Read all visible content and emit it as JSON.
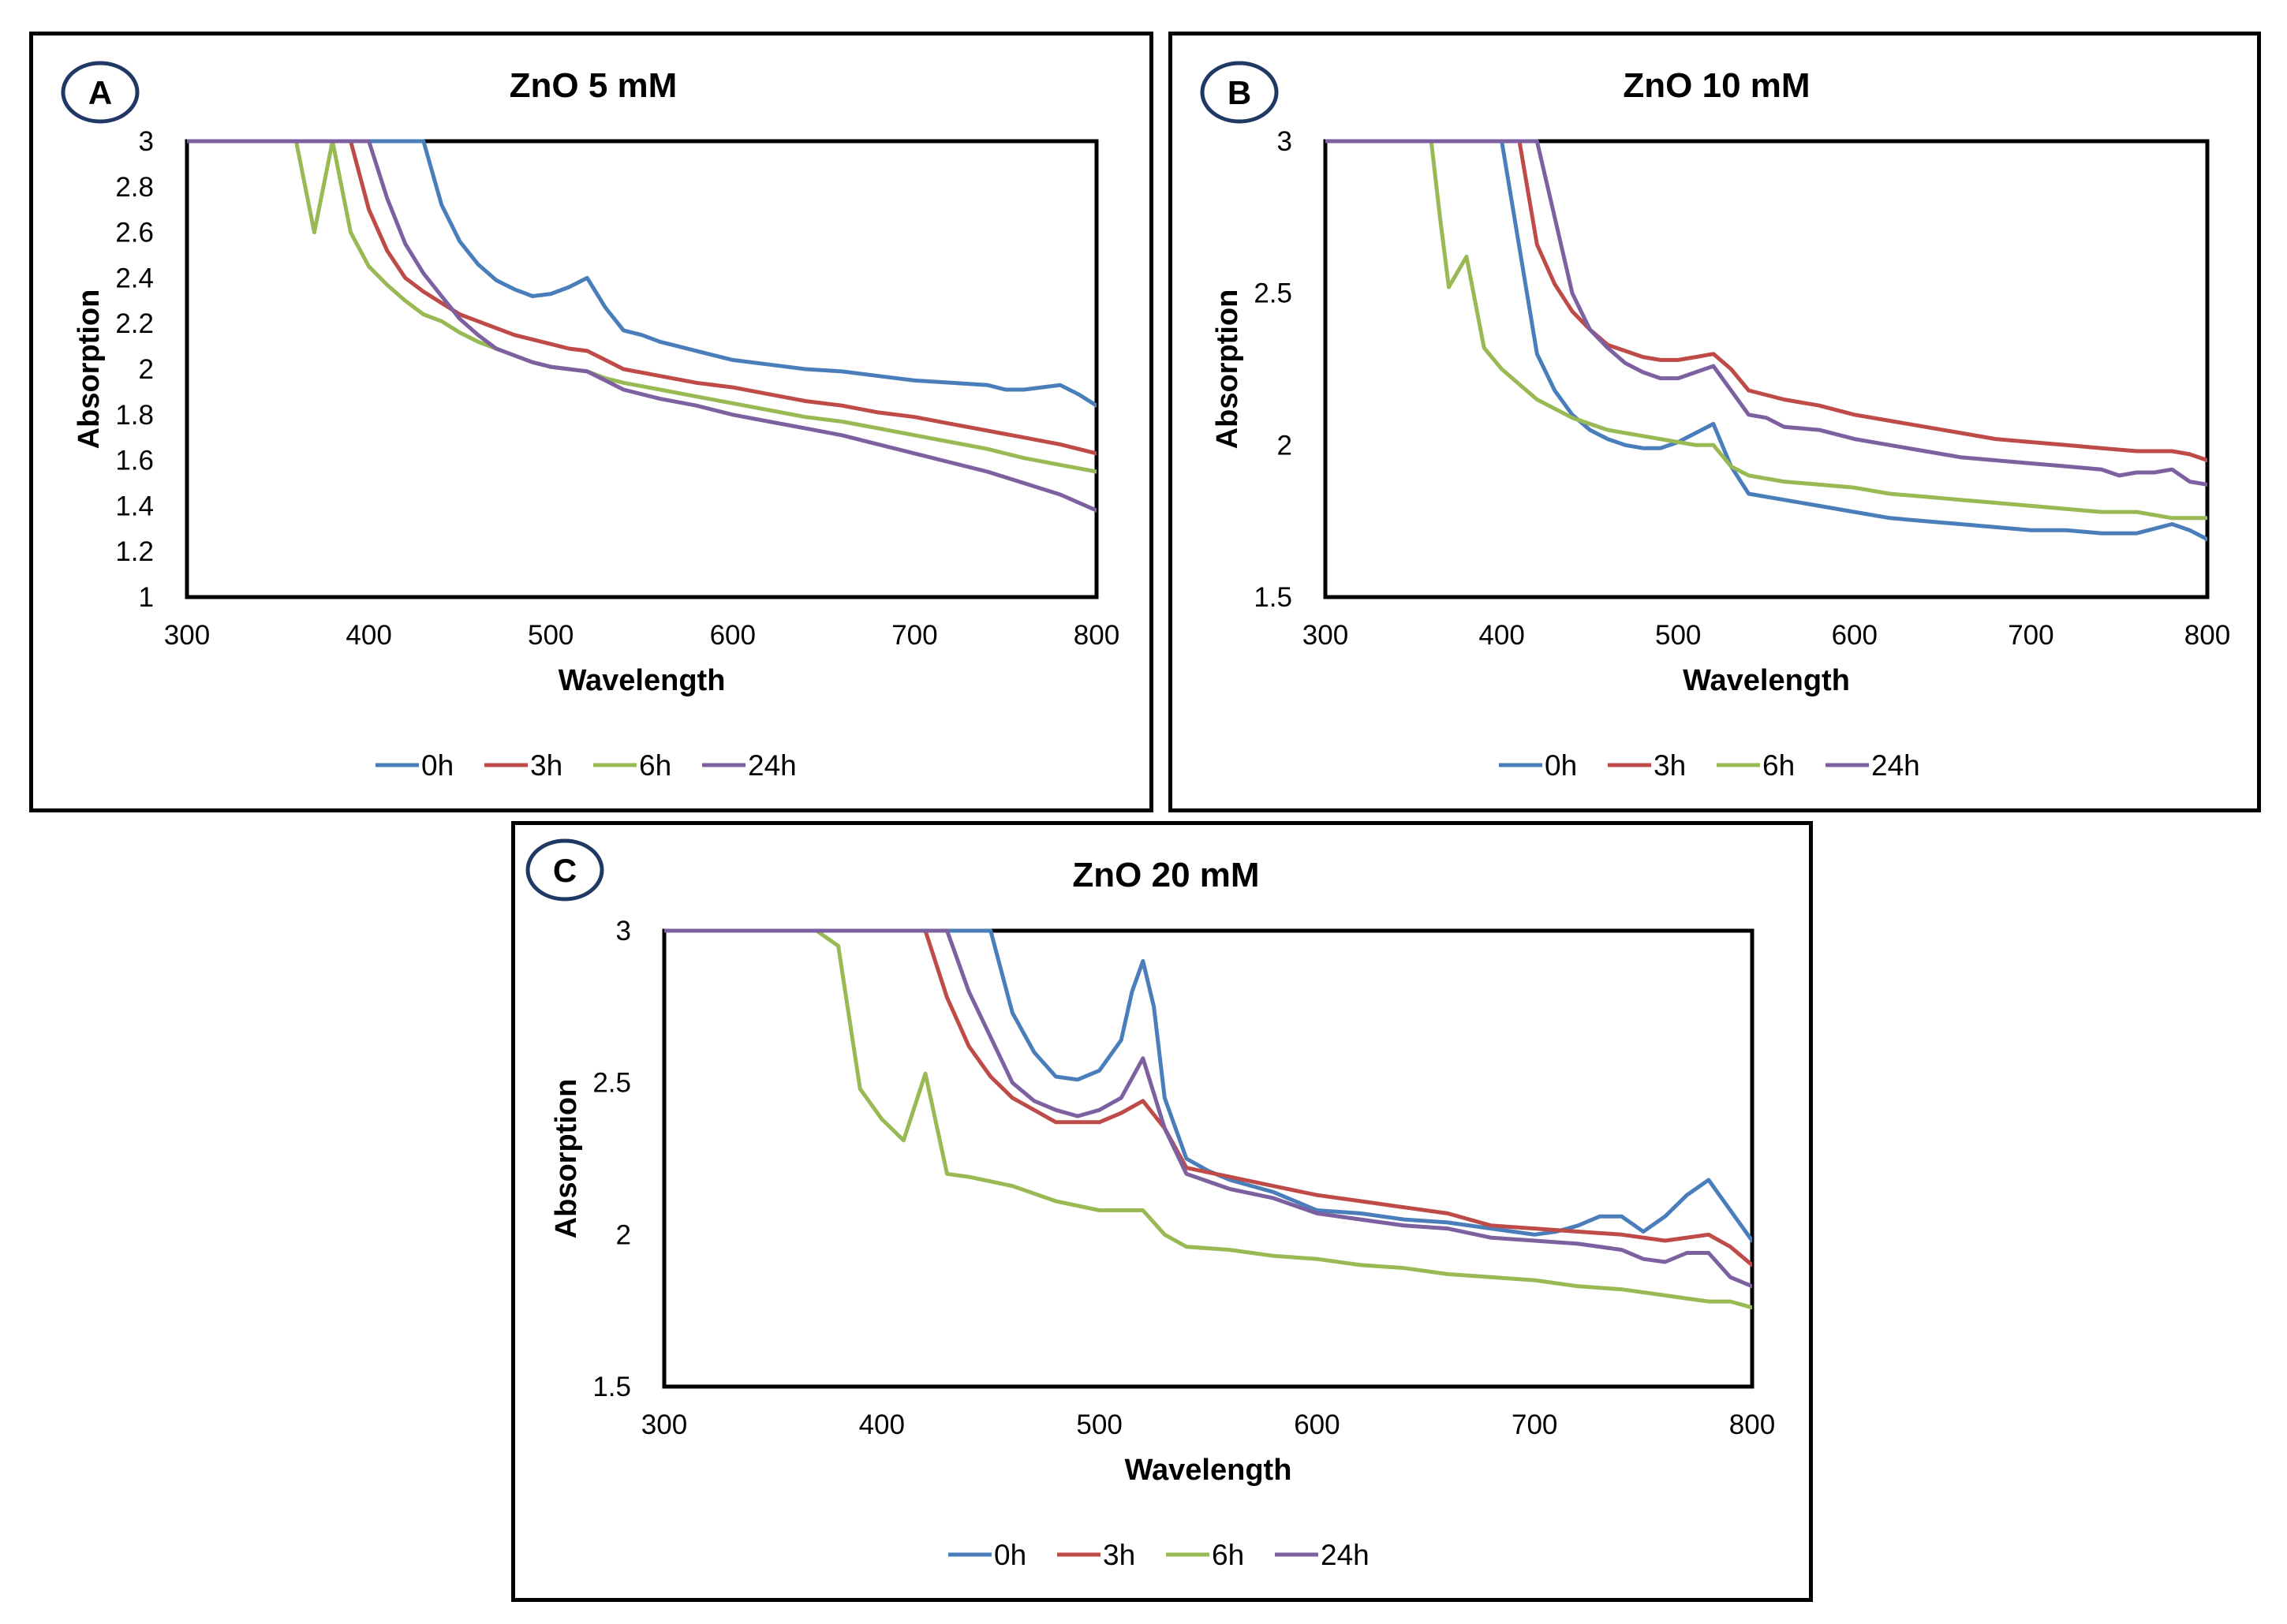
{
  "colors": {
    "0h": "#4a7ebb",
    "3h": "#be4b48",
    "6h": "#98b954",
    "24h": "#7d60a0",
    "badge_border": "#1f3864"
  },
  "chart_data": [
    {
      "type": "line",
      "panel_label": "A",
      "title": "ZnO 5 mM",
      "xlabel": "Wavelength",
      "ylabel": "Absorption",
      "xlim": [
        300,
        800
      ],
      "ylim": [
        1,
        3
      ],
      "xticks": [
        "300",
        "400",
        "500",
        "600",
        "700",
        "800"
      ],
      "yticks": [
        "1",
        "1.2",
        "1.4",
        "1.6",
        "1.8",
        "2",
        "2.2",
        "2.4",
        "2.6",
        "2.8",
        "3"
      ],
      "legend": [
        "0h",
        "3h",
        "6h",
        "24h"
      ],
      "series": [
        {
          "name": "0h",
          "x": [
            300,
            430,
            440,
            450,
            460,
            470,
            480,
            490,
            500,
            510,
            520,
            530,
            540,
            550,
            560,
            570,
            580,
            590,
            600,
            620,
            640,
            660,
            680,
            700,
            720,
            740,
            750,
            760,
            770,
            780,
            790,
            800
          ],
          "y": [
            3,
            3,
            2.72,
            2.56,
            2.46,
            2.39,
            2.35,
            2.32,
            2.33,
            2.36,
            2.4,
            2.27,
            2.17,
            2.15,
            2.12,
            2.1,
            2.08,
            2.06,
            2.04,
            2.02,
            2.0,
            1.99,
            1.97,
            1.95,
            1.94,
            1.93,
            1.91,
            1.91,
            1.92,
            1.93,
            1.89,
            1.84
          ]
        },
        {
          "name": "3h",
          "x": [
            300,
            390,
            400,
            410,
            420,
            430,
            440,
            450,
            460,
            470,
            480,
            490,
            500,
            510,
            520,
            530,
            540,
            560,
            580,
            600,
            620,
            640,
            660,
            680,
            700,
            720,
            740,
            760,
            780,
            800
          ],
          "y": [
            3,
            3,
            2.7,
            2.52,
            2.4,
            2.34,
            2.29,
            2.24,
            2.21,
            2.18,
            2.15,
            2.13,
            2.11,
            2.09,
            2.08,
            2.04,
            2.0,
            1.97,
            1.94,
            1.92,
            1.89,
            1.86,
            1.84,
            1.81,
            1.79,
            1.76,
            1.73,
            1.7,
            1.67,
            1.63
          ]
        },
        {
          "name": "6h",
          "x": [
            300,
            360,
            370,
            380,
            390,
            400,
            410,
            420,
            430,
            440,
            450,
            460,
            470,
            480,
            490,
            500,
            510,
            520,
            530,
            540,
            560,
            580,
            600,
            620,
            640,
            660,
            680,
            700,
            720,
            740,
            760,
            780,
            800
          ],
          "y": [
            3,
            3,
            2.6,
            3,
            2.6,
            2.45,
            2.37,
            2.3,
            2.24,
            2.21,
            2.16,
            2.12,
            2.09,
            2.06,
            2.03,
            2.01,
            2.0,
            1.99,
            1.96,
            1.94,
            1.91,
            1.88,
            1.85,
            1.82,
            1.79,
            1.77,
            1.74,
            1.71,
            1.68,
            1.65,
            1.61,
            1.58,
            1.55
          ]
        },
        {
          "name": "24h",
          "x": [
            300,
            400,
            410,
            420,
            430,
            440,
            450,
            460,
            470,
            480,
            490,
            500,
            510,
            520,
            530,
            540,
            560,
            580,
            600,
            620,
            640,
            660,
            680,
            700,
            720,
            740,
            760,
            780,
            800
          ],
          "y": [
            3,
            3,
            2.75,
            2.55,
            2.42,
            2.32,
            2.22,
            2.15,
            2.09,
            2.06,
            2.03,
            2.01,
            2.0,
            1.99,
            1.95,
            1.91,
            1.87,
            1.84,
            1.8,
            1.77,
            1.74,
            1.71,
            1.67,
            1.63,
            1.59,
            1.55,
            1.5,
            1.45,
            1.38
          ]
        }
      ]
    },
    {
      "type": "line",
      "panel_label": "B",
      "title": "ZnO 10 mM",
      "xlabel": "Wavelength",
      "ylabel": "Absorption",
      "xlim": [
        300,
        800
      ],
      "ylim": [
        1.5,
        3
      ],
      "xticks": [
        "300",
        "400",
        "500",
        "600",
        "700",
        "800"
      ],
      "yticks": [
        "1.5",
        "2",
        "2.5",
        "3"
      ],
      "legend": [
        "0h",
        "3h",
        "6h",
        "24h"
      ],
      "series": [
        {
          "name": "0h",
          "x": [
            300,
            400,
            410,
            420,
            430,
            440,
            450,
            460,
            470,
            480,
            490,
            500,
            510,
            520,
            530,
            540,
            560,
            580,
            600,
            620,
            640,
            660,
            680,
            700,
            720,
            740,
            760,
            780,
            790,
            800
          ],
          "y": [
            3,
            3,
            2.65,
            2.3,
            2.18,
            2.1,
            2.05,
            2.02,
            2.0,
            1.99,
            1.99,
            2.01,
            2.04,
            2.07,
            1.93,
            1.84,
            1.82,
            1.8,
            1.78,
            1.76,
            1.75,
            1.74,
            1.73,
            1.72,
            1.72,
            1.71,
            1.71,
            1.74,
            1.72,
            1.69
          ]
        },
        {
          "name": "3h",
          "x": [
            300,
            410,
            420,
            430,
            440,
            450,
            460,
            470,
            480,
            490,
            500,
            510,
            520,
            530,
            540,
            560,
            580,
            600,
            620,
            640,
            660,
            680,
            700,
            720,
            740,
            760,
            780,
            790,
            800
          ],
          "y": [
            3,
            3,
            2.66,
            2.53,
            2.44,
            2.38,
            2.33,
            2.31,
            2.29,
            2.28,
            2.28,
            2.29,
            2.3,
            2.25,
            2.18,
            2.15,
            2.13,
            2.1,
            2.08,
            2.06,
            2.04,
            2.02,
            2.01,
            2.0,
            1.99,
            1.98,
            1.98,
            1.97,
            1.95
          ]
        },
        {
          "name": "6h",
          "x": [
            300,
            360,
            365,
            370,
            380,
            390,
            400,
            410,
            420,
            440,
            460,
            480,
            500,
            510,
            520,
            530,
            540,
            560,
            580,
            600,
            620,
            640,
            660,
            680,
            700,
            720,
            740,
            760,
            780,
            800
          ],
          "y": [
            3,
            3,
            2.75,
            2.52,
            2.62,
            2.32,
            2.25,
            2.2,
            2.15,
            2.09,
            2.05,
            2.03,
            2.01,
            2.0,
            2.0,
            1.93,
            1.9,
            1.88,
            1.87,
            1.86,
            1.84,
            1.83,
            1.82,
            1.81,
            1.8,
            1.79,
            1.78,
            1.78,
            1.76,
            1.76
          ]
        },
        {
          "name": "24h",
          "x": [
            300,
            420,
            430,
            440,
            450,
            460,
            470,
            480,
            490,
            500,
            510,
            520,
            530,
            540,
            550,
            560,
            580,
            600,
            620,
            640,
            660,
            680,
            700,
            720,
            740,
            750,
            760,
            770,
            780,
            790,
            800
          ],
          "y": [
            3,
            3,
            2.75,
            2.5,
            2.38,
            2.32,
            2.27,
            2.24,
            2.22,
            2.22,
            2.24,
            2.26,
            2.18,
            2.1,
            2.09,
            2.06,
            2.05,
            2.02,
            2.0,
            1.98,
            1.96,
            1.95,
            1.94,
            1.93,
            1.92,
            1.9,
            1.91,
            1.91,
            1.92,
            1.88,
            1.87
          ]
        }
      ]
    },
    {
      "type": "line",
      "panel_label": "C",
      "title": "ZnO 20 mM",
      "xlabel": "Wavelength",
      "ylabel": "Absorption",
      "xlim": [
        300,
        800
      ],
      "ylim": [
        1.5,
        3
      ],
      "xticks": [
        "300",
        "400",
        "500",
        "600",
        "700",
        "800"
      ],
      "yticks": [
        "1.5",
        "2",
        "2.5",
        "3"
      ],
      "legend": [
        "0h",
        "3h",
        "6h",
        "24h"
      ],
      "series": [
        {
          "name": "0h",
          "x": [
            300,
            450,
            460,
            470,
            480,
            490,
            500,
            510,
            515,
            520,
            525,
            530,
            540,
            550,
            560,
            580,
            600,
            620,
            640,
            660,
            680,
            700,
            710,
            720,
            730,
            740,
            750,
            760,
            770,
            780,
            790,
            800
          ],
          "y": [
            3,
            3,
            2.73,
            2.6,
            2.52,
            2.51,
            2.54,
            2.64,
            2.8,
            2.9,
            2.75,
            2.45,
            2.25,
            2.21,
            2.18,
            2.14,
            2.08,
            2.07,
            2.05,
            2.04,
            2.02,
            2.0,
            2.01,
            2.03,
            2.06,
            2.06,
            2.01,
            2.06,
            2.13,
            2.18,
            2.08,
            1.98
          ]
        },
        {
          "name": "3h",
          "x": [
            300,
            420,
            430,
            440,
            450,
            460,
            470,
            480,
            490,
            500,
            510,
            520,
            530,
            540,
            560,
            580,
            600,
            620,
            640,
            660,
            680,
            700,
            720,
            740,
            760,
            780,
            790,
            800
          ],
          "y": [
            3,
            3,
            2.78,
            2.62,
            2.52,
            2.45,
            2.41,
            2.37,
            2.37,
            2.37,
            2.4,
            2.44,
            2.35,
            2.22,
            2.19,
            2.16,
            2.13,
            2.11,
            2.09,
            2.07,
            2.03,
            2.02,
            2.01,
            2.0,
            1.98,
            2.0,
            1.96,
            1.9
          ]
        },
        {
          "name": "6h",
          "x": [
            300,
            370,
            380,
            390,
            400,
            410,
            420,
            430,
            440,
            460,
            480,
            500,
            520,
            530,
            540,
            560,
            580,
            600,
            620,
            640,
            660,
            680,
            700,
            720,
            740,
            760,
            780,
            790,
            800
          ],
          "y": [
            3,
            3,
            2.95,
            2.48,
            2.38,
            2.31,
            2.53,
            2.2,
            2.19,
            2.16,
            2.11,
            2.08,
            2.08,
            2.0,
            1.96,
            1.95,
            1.93,
            1.92,
            1.9,
            1.89,
            1.87,
            1.86,
            1.85,
            1.83,
            1.82,
            1.8,
            1.78,
            1.78,
            1.76
          ]
        },
        {
          "name": "24h",
          "x": [
            300,
            430,
            440,
            450,
            460,
            470,
            480,
            490,
            500,
            510,
            520,
            530,
            540,
            560,
            580,
            600,
            620,
            640,
            660,
            680,
            700,
            720,
            740,
            750,
            760,
            770,
            780,
            790,
            800
          ],
          "y": [
            3,
            3,
            2.8,
            2.65,
            2.5,
            2.44,
            2.41,
            2.39,
            2.41,
            2.45,
            2.58,
            2.35,
            2.2,
            2.15,
            2.12,
            2.07,
            2.05,
            2.03,
            2.02,
            1.99,
            1.98,
            1.97,
            1.95,
            1.92,
            1.91,
            1.94,
            1.94,
            1.86,
            1.83
          ]
        }
      ]
    }
  ]
}
